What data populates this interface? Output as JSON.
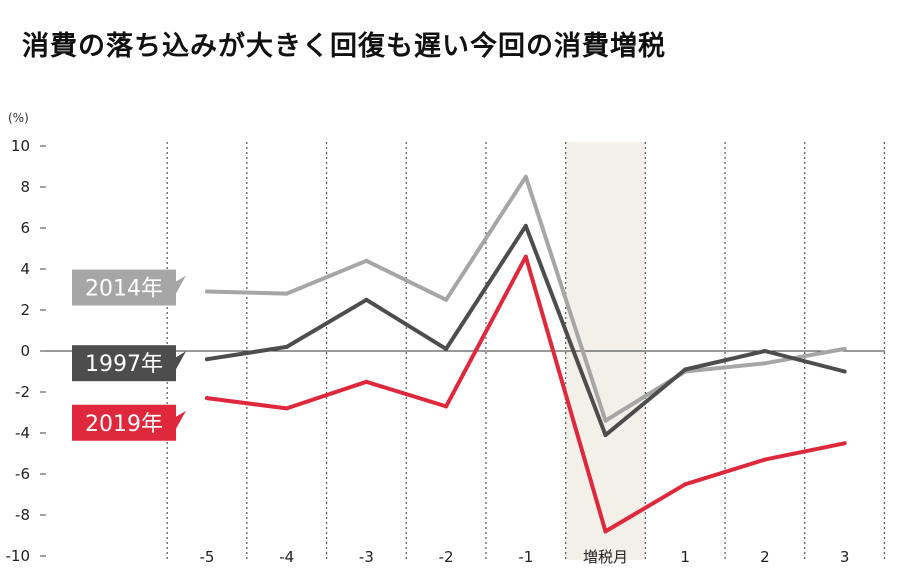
{
  "chart_data": {
    "type": "line",
    "title": "消費の落ち込みが大きく回復も遅い今回の消費増税",
    "y_unit": "(%)",
    "categories": [
      "-5",
      "-4",
      "-3",
      "-2",
      "-1",
      "増税月",
      "1",
      "2",
      "3"
    ],
    "highlight_category": "増税月",
    "ylim": [
      -10,
      10
    ],
    "yticks": [
      10,
      8,
      6,
      4,
      2,
      0,
      -2,
      -4,
      -6,
      -8,
      -10
    ],
    "grid": "vertical-dotted",
    "series": [
      {
        "name": "2014年",
        "color": "#a6a6a6",
        "values": [
          2.9,
          2.8,
          4.4,
          2.5,
          8.5,
          -3.4,
          -1.0,
          -0.6,
          0.1
        ]
      },
      {
        "name": "1997年",
        "color": "#4d4d4d",
        "values": [
          -0.4,
          0.2,
          2.5,
          0.1,
          6.1,
          -4.1,
          -0.9,
          0.0,
          -1.0
        ]
      },
      {
        "name": "2019年",
        "color": "#e0283c",
        "values": [
          -2.3,
          -2.8,
          -1.5,
          -2.7,
          4.6,
          -8.8,
          -6.5,
          -5.3,
          -4.5
        ]
      }
    ]
  }
}
